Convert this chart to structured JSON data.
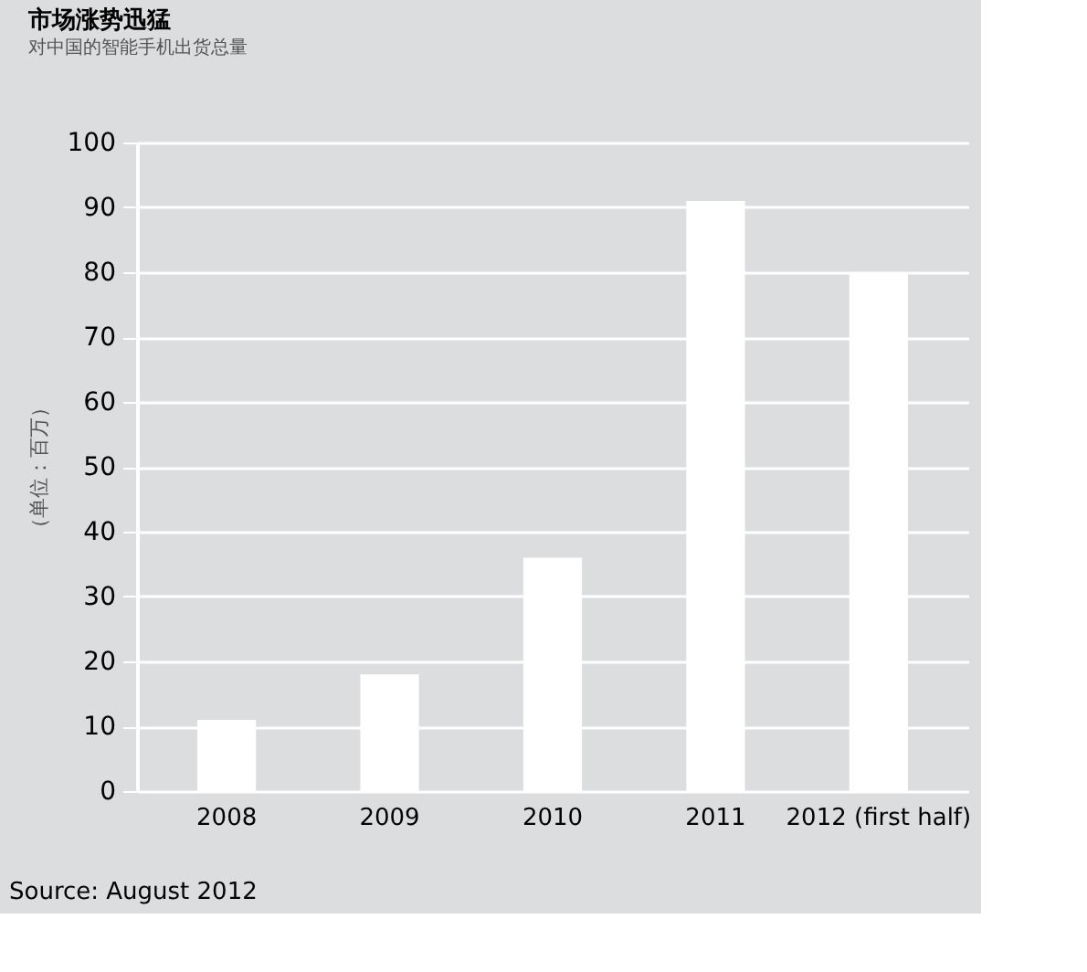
{
  "chart_data": {
    "type": "bar",
    "title": "市场涨势迅猛",
    "subtitle": "对中国的智能手机出货总量",
    "ylabel": "（单位：百万）",
    "categories": [
      "2008",
      "2009",
      "2010",
      "2011",
      "2012 (first half)"
    ],
    "values": [
      11,
      18,
      36,
      91,
      80
    ],
    "color": "#ffffff",
    "ylim": [
      0,
      100
    ],
    "yticks": [
      0,
      10,
      20,
      30,
      40,
      50,
      60,
      70,
      80,
      90,
      100
    ],
    "grid": "y",
    "annotations": [
      "Source: August 2012"
    ]
  }
}
